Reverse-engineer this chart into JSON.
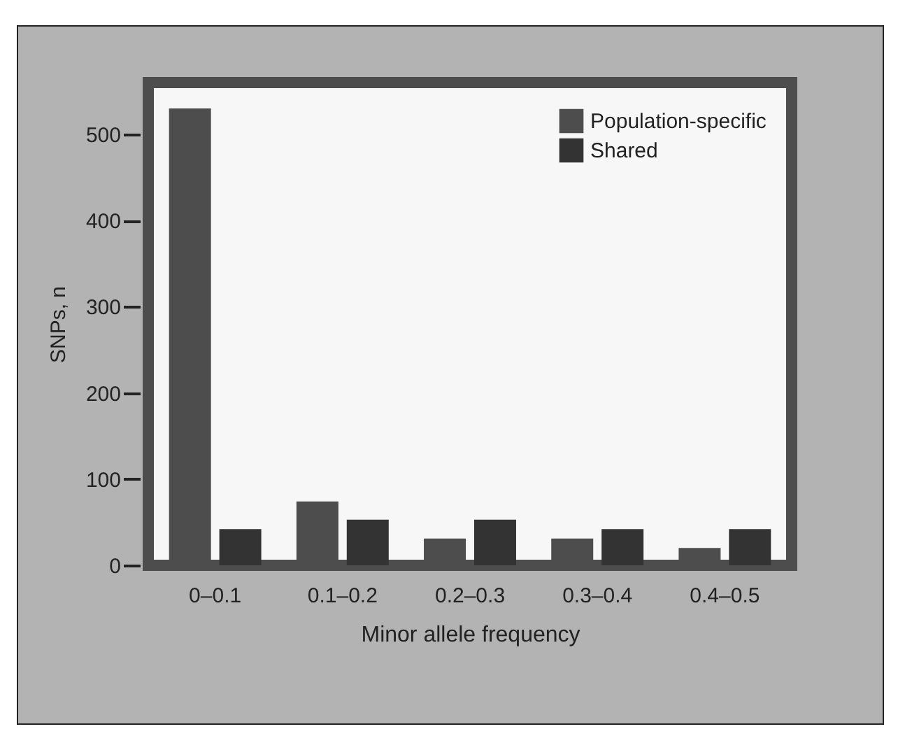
{
  "chart_data": {
    "type": "bar",
    "xlabel": "Minor allele frequency",
    "ylabel": "SNPs, n",
    "categories": [
      "0–0.1",
      "0.1–0.2",
      "0.2–0.3",
      "0.3–0.4",
      "0.4–0.5"
    ],
    "series": [
      {
        "name": "Population-specific",
        "color": "#4d4d4d",
        "values": [
          530,
          74,
          31,
          31,
          20
        ]
      },
      {
        "name": "Shared",
        "color": "#333333",
        "values": [
          42,
          53,
          53,
          42,
          42
        ]
      }
    ],
    "ylim": [
      0,
      560
    ],
    "yticks": [
      0,
      100,
      200,
      300,
      400,
      500
    ],
    "grid": false,
    "legend": "top right"
  }
}
